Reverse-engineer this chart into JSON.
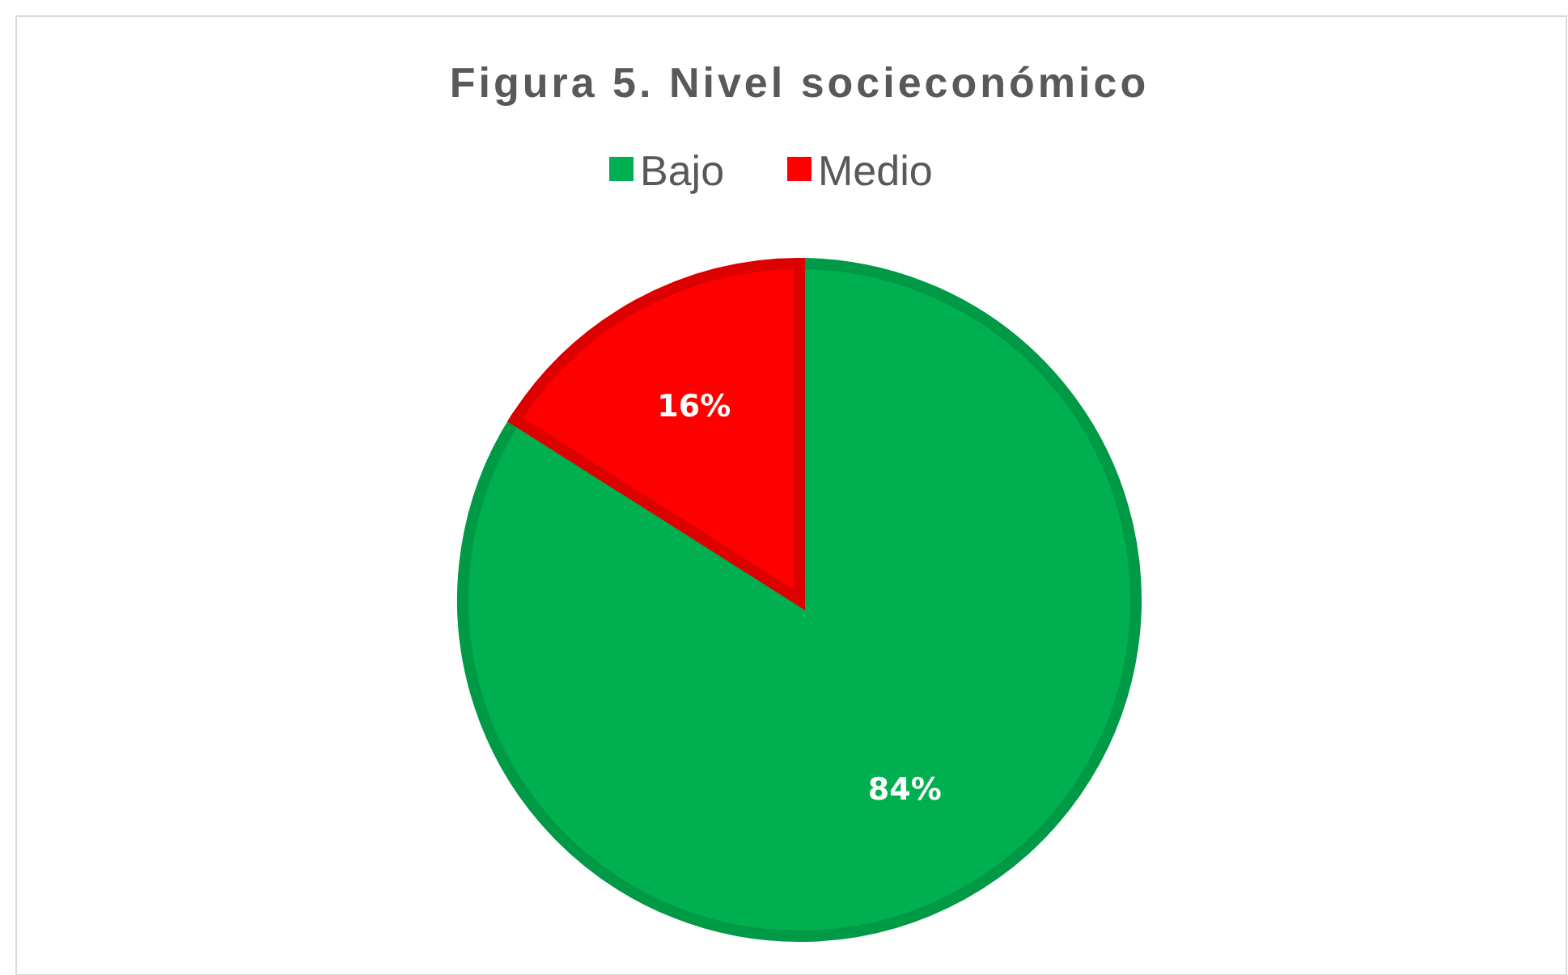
{
  "chart_data": {
    "type": "pie",
    "title": "Figura 5. Nivel socieconómico",
    "categories": [
      "Bajo",
      "Medio"
    ],
    "values": [
      84,
      16
    ],
    "colors": [
      "#00b050",
      "#ff0000"
    ],
    "value_labels": [
      "84%",
      "16%"
    ],
    "legend": "top"
  }
}
